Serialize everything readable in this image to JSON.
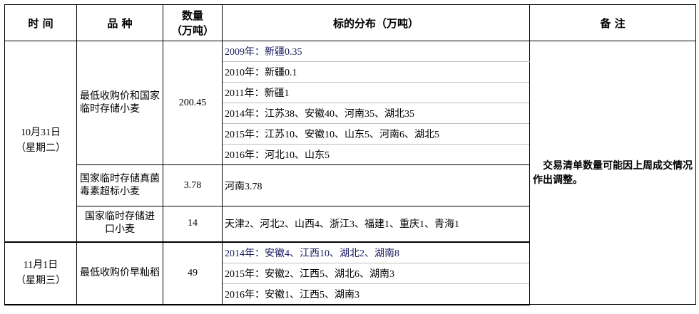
{
  "headers": {
    "time": "时 间",
    "variety": "品 种",
    "quantity_line1": "数量",
    "quantity_line2": "（万吨）",
    "distribution": "标的分布（万吨）",
    "remarks": "备 注"
  },
  "groups": [
    {
      "date": "10月31日",
      "weekday": "（星期二）",
      "items": [
        {
          "variety": "最低收购价和国家临时存储小麦",
          "quantity": "200.45",
          "distribution": [
            "2009年：新疆0.35",
            "2010年：新疆0.1",
            "2011年：新疆1",
            "2014年：江苏38、安徽40、河南35、湖北35",
            "2015年：江苏10、安徽10、山东5、河南6、湖北5",
            "2016年：河北10、山东5"
          ]
        },
        {
          "variety": "国家临时存储真菌毒素超标小麦",
          "quantity": "3.78",
          "distribution": [
            "河南3.78"
          ]
        },
        {
          "variety": "国家临时存储进口小麦",
          "quantity": "14",
          "distribution": [
            "天津2、河北2、山西4、浙江3、福建1、重庆1、青海1"
          ]
        }
      ]
    },
    {
      "date": "11月1日",
      "weekday": "（星期三）",
      "items": [
        {
          "variety": "最低收购价早籼稻",
          "quantity": "49",
          "distribution": [
            "2014年：安徽4、江西10、湖北2、湖南8",
            "2015年：安徽2、江西5、湖北6、湖南3",
            "2016年：安徽1、江西5、湖南3"
          ]
        }
      ]
    }
  ],
  "remarks": "　交易清单数量可能因上周成交情况作出调整。"
}
